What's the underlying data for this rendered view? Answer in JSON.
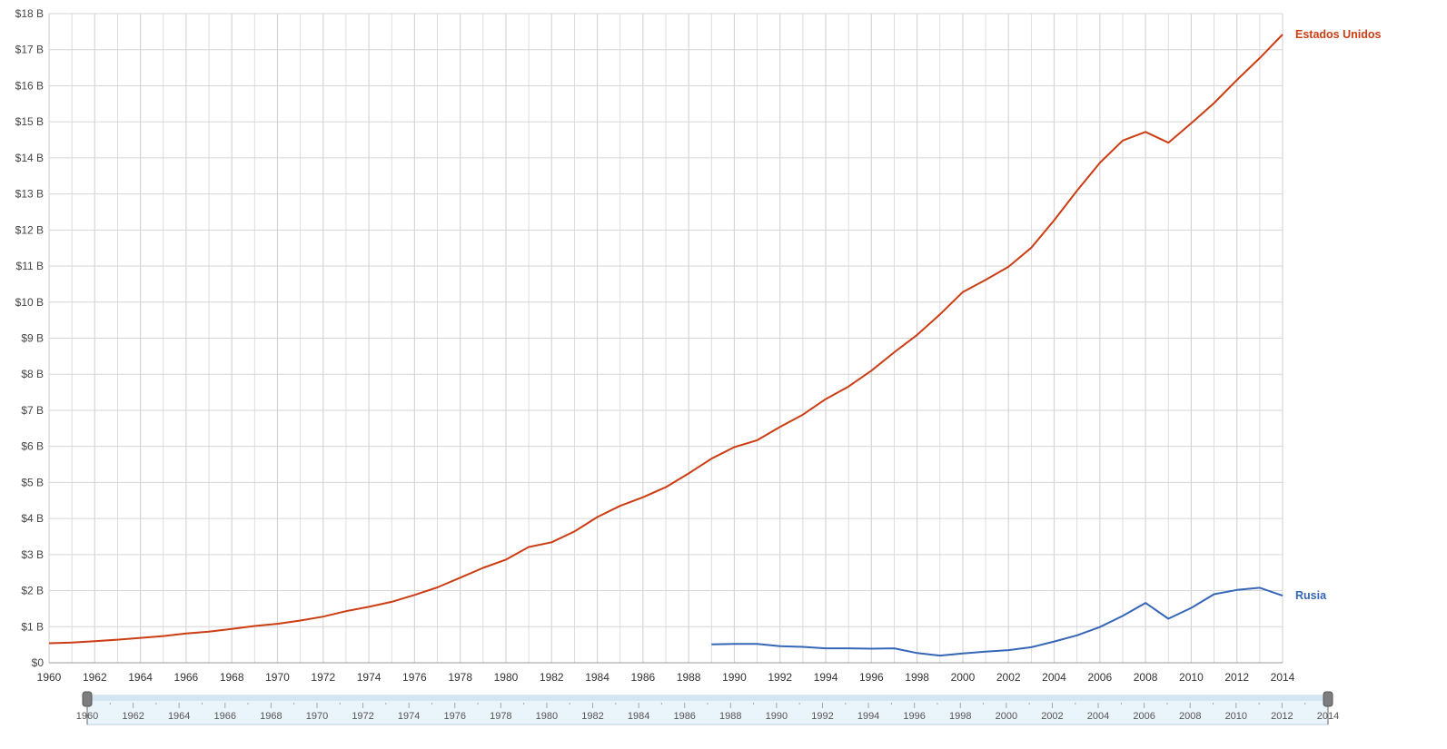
{
  "colors": {
    "usa": "#cc3d13",
    "russia": "#3566b8",
    "grid": "#d6d6d6"
  },
  "chart_data": {
    "type": "line",
    "title": "",
    "xlabel": "",
    "ylabel": "",
    "xlim": [
      1960,
      2014
    ],
    "ylim": [
      0,
      18
    ],
    "y_ticks": [
      "$0",
      "$1 B",
      "$2 B",
      "$3 B",
      "$4 B",
      "$5 B",
      "$6 B",
      "$7 B",
      "$8 B",
      "$9 B",
      "$10 B",
      "$11 B",
      "$12 B",
      "$13 B",
      "$14 B",
      "$15 B",
      "$16 B",
      "$17 B",
      "$18 B"
    ],
    "x_ticks": [
      "1960",
      "1962",
      "1964",
      "1966",
      "1968",
      "1970",
      "1972",
      "1974",
      "1976",
      "1978",
      "1980",
      "1982",
      "1984",
      "1986",
      "1988",
      "1990",
      "1992",
      "1994",
      "1996",
      "1998",
      "2000",
      "2002",
      "2004",
      "2006",
      "2008",
      "2010",
      "2012",
      "2014"
    ],
    "grid": true,
    "legend": "end-of-line labels",
    "series": [
      {
        "name": "Estados Unidos",
        "color": "#cc3d13",
        "x": [
          1960,
          1961,
          1962,
          1963,
          1964,
          1965,
          1966,
          1967,
          1968,
          1969,
          1970,
          1971,
          1972,
          1973,
          1974,
          1975,
          1976,
          1977,
          1978,
          1979,
          1980,
          1981,
          1982,
          1983,
          1984,
          1985,
          1986,
          1987,
          1988,
          1989,
          1990,
          1991,
          1992,
          1993,
          1994,
          1995,
          1996,
          1997,
          1998,
          1999,
          2000,
          2001,
          2002,
          2003,
          2004,
          2005,
          2006,
          2007,
          2008,
          2009,
          2010,
          2011,
          2012,
          2013,
          2014
        ],
        "values": [
          0.54,
          0.56,
          0.6,
          0.64,
          0.69,
          0.74,
          0.81,
          0.86,
          0.94,
          1.02,
          1.08,
          1.17,
          1.28,
          1.43,
          1.55,
          1.69,
          1.88,
          2.09,
          2.36,
          2.63,
          2.86,
          3.21,
          3.34,
          3.64,
          4.04,
          4.35,
          4.59,
          4.87,
          5.25,
          5.66,
          5.98,
          6.17,
          6.54,
          6.88,
          7.31,
          7.66,
          8.1,
          8.61,
          9.09,
          9.66,
          10.28,
          10.62,
          10.98,
          11.51,
          12.27,
          13.09,
          13.86,
          14.48,
          14.72,
          14.42,
          14.96,
          15.52,
          16.16,
          16.77,
          17.42
        ]
      },
      {
        "name": "Rusia",
        "color": "#3566b8",
        "x": [
          1989,
          1990,
          1991,
          1992,
          1993,
          1994,
          1995,
          1996,
          1997,
          1998,
          1999,
          2000,
          2001,
          2002,
          2003,
          2004,
          2005,
          2006,
          2007,
          2008,
          2009,
          2010,
          2011,
          2012,
          2013,
          2014
        ],
        "values": [
          0.51,
          0.52,
          0.52,
          0.46,
          0.44,
          0.4,
          0.4,
          0.39,
          0.4,
          0.27,
          0.2,
          0.26,
          0.31,
          0.35,
          0.43,
          0.59,
          0.76,
          0.99,
          1.3,
          1.66,
          1.22,
          1.52,
          1.9,
          2.02,
          2.08,
          1.86
        ]
      }
    ]
  },
  "navigator": {
    "ticks": [
      "1960",
      "1962",
      "1964",
      "1966",
      "1968",
      "1970",
      "1972",
      "1974",
      "1976",
      "1978",
      "1980",
      "1982",
      "1984",
      "1986",
      "1988",
      "1990",
      "1992",
      "1994",
      "1996",
      "1998",
      "2000",
      "2002",
      "2004",
      "2006",
      "2008",
      "2010",
      "2012",
      "2014"
    ],
    "range": [
      1960,
      2014
    ]
  }
}
